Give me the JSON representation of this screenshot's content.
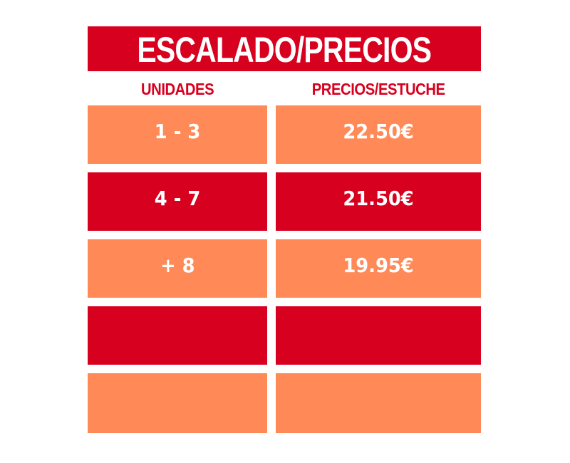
{
  "title": "ESCALADO/PRECIOS",
  "headers": {
    "units": "UNIDADES",
    "price": "PRECIOS/ESTUCHE"
  },
  "colors": {
    "dark_red": "#d7001f",
    "orange": "#ff8a57",
    "white": "#ffffff"
  },
  "rows": [
    {
      "units": "1 - 3",
      "price": "22.50€"
    },
    {
      "units": "4 - 7",
      "price": "21.50€"
    },
    {
      "units": "+ 8",
      "price": "19.95€"
    },
    {
      "units": "",
      "price": ""
    },
    {
      "units": "",
      "price": ""
    }
  ]
}
